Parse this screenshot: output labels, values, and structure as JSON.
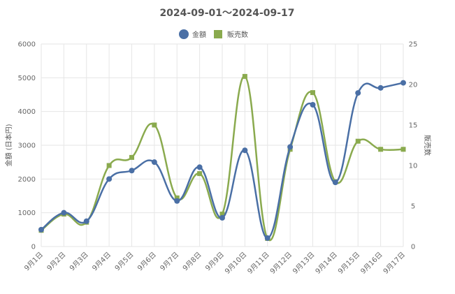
{
  "chart_data": {
    "type": "line",
    "title": "2024-09-01〜2024-09-17",
    "categories": [
      "9月1日",
      "9月2日",
      "9月3日",
      "9月4日",
      "9月5日",
      "9月6日",
      "9月7日",
      "9月8日",
      "9月9日",
      "9月10日",
      "9月11日",
      "9月12日",
      "9月13日",
      "9月14日",
      "9月15日",
      "9月16日",
      "9月17日"
    ],
    "series": [
      {
        "name": "金額",
        "axis": "left",
        "marker": "circle",
        "color": "#4a6fa5",
        "values": [
          500,
          1000,
          750,
          2000,
          2250,
          2500,
          1350,
          2350,
          850,
          2850,
          250,
          2950,
          4200,
          1900,
          4550,
          4700,
          4850
        ]
      },
      {
        "name": "販売数",
        "axis": "right",
        "marker": "square",
        "color": "#8aaa4e",
        "values": [
          2,
          4,
          3,
          10,
          11,
          15,
          6,
          9,
          4,
          21,
          1,
          12,
          19,
          8,
          13,
          12,
          12
        ]
      }
    ],
    "ylabel": "金額 (日本円)",
    "y2label": "販売数",
    "ylim": [
      0,
      6000
    ],
    "y2lim": [
      0,
      25
    ],
    "yticks": [
      "0",
      "1000",
      "2000",
      "3000",
      "4000",
      "5000",
      "6000"
    ],
    "y2ticks": [
      "0",
      "5",
      "10",
      "15",
      "20",
      "25"
    ],
    "grid": true,
    "legend": "top-center"
  }
}
